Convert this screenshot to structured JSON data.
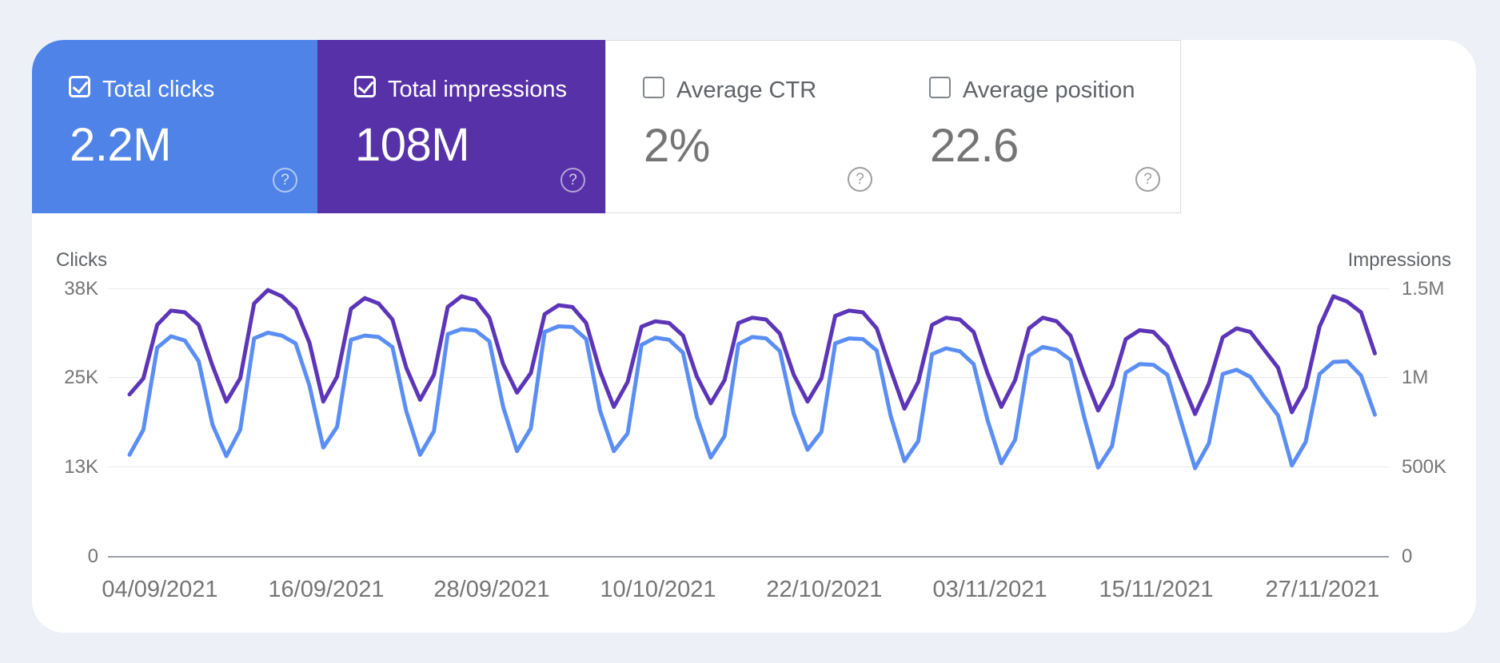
{
  "page": {
    "background": "#edf0f6",
    "panel_background": "#ffffff"
  },
  "scorecards": [
    {
      "label": "Total clicks",
      "value": "2.2M",
      "checked": true,
      "bg": "#4f83e8",
      "help_icon": "circled-question-mark"
    },
    {
      "label": "Total impressions",
      "value": "108M",
      "checked": true,
      "bg": "#5731a8",
      "help_icon": "circled-question-mark"
    },
    {
      "label": "Average CTR",
      "value": "2%",
      "checked": false,
      "bg": "",
      "help_icon": "circled-question-mark"
    },
    {
      "label": "Average position",
      "value": "22.6",
      "checked": false,
      "bg": "",
      "help_icon": "circled-question-mark"
    }
  ],
  "chart_data": {
    "type": "line",
    "grid": "horizontal-only",
    "left_axis": {
      "title": "Clicks",
      "max": 37500,
      "ticks": [
        "38K",
        "25K",
        "13K",
        "0"
      ]
    },
    "right_axis": {
      "title": "Impressions",
      "max": 1500000,
      "ticks": [
        "1.5M",
        "1M",
        "500K",
        "0"
      ]
    },
    "x_ticks": [
      "04/09/2021",
      "16/09/2021",
      "28/09/2021",
      "10/10/2021",
      "22/10/2021",
      "03/11/2021",
      "15/11/2021",
      "27/11/2021"
    ],
    "x_tick_interval_days": 12,
    "series": [
      {
        "name": "Impressions",
        "axis": "right",
        "color": "#5c35b8",
        "values": [
          910000,
          1000000,
          1300000,
          1380000,
          1370000,
          1300000,
          1070000,
          870000,
          1000000,
          1420000,
          1495000,
          1460000,
          1390000,
          1200000,
          870000,
          1010000,
          1390000,
          1450000,
          1420000,
          1330000,
          1060000,
          880000,
          1020000,
          1400000,
          1460000,
          1440000,
          1340000,
          1080000,
          920000,
          1030000,
          1360000,
          1410000,
          1400000,
          1310000,
          1040000,
          840000,
          980000,
          1290000,
          1320000,
          1310000,
          1240000,
          1010000,
          860000,
          990000,
          1310000,
          1340000,
          1330000,
          1250000,
          1020000,
          870000,
          1000000,
          1350000,
          1380000,
          1370000,
          1280000,
          1050000,
          830000,
          980000,
          1300000,
          1340000,
          1330000,
          1260000,
          1030000,
          840000,
          990000,
          1280000,
          1340000,
          1320000,
          1240000,
          1020000,
          820000,
          960000,
          1220000,
          1270000,
          1260000,
          1180000,
          990000,
          800000,
          970000,
          1230000,
          1280000,
          1260000,
          1160000,
          1060000,
          810000,
          950000,
          1290000,
          1460000,
          1430000,
          1370000,
          1140000
        ]
      },
      {
        "name": "Clicks",
        "axis": "left",
        "color": "#5b8ef4",
        "values": [
          14300,
          17800,
          29300,
          30900,
          30300,
          27400,
          18500,
          14100,
          17800,
          30600,
          31400,
          31000,
          29900,
          24000,
          15300,
          18200,
          30400,
          31000,
          30800,
          29400,
          20400,
          14300,
          17600,
          31200,
          31900,
          31700,
          30200,
          21000,
          14800,
          18000,
          31500,
          32300,
          32200,
          30500,
          20500,
          14800,
          17300,
          29700,
          30700,
          30400,
          28600,
          19600,
          13900,
          16900,
          29800,
          30800,
          30600,
          28800,
          20000,
          15000,
          17500,
          29900,
          30600,
          30500,
          28900,
          19800,
          13400,
          16200,
          28400,
          29200,
          28800,
          27000,
          19200,
          13100,
          16400,
          28200,
          29400,
          29000,
          27600,
          19500,
          12500,
          15500,
          25800,
          27000,
          26900,
          25500,
          18900,
          12400,
          15900,
          25600,
          26200,
          25200,
          22400,
          19800,
          12800,
          16100,
          25600,
          27300,
          27400,
          25400,
          19900
        ]
      }
    ]
  }
}
